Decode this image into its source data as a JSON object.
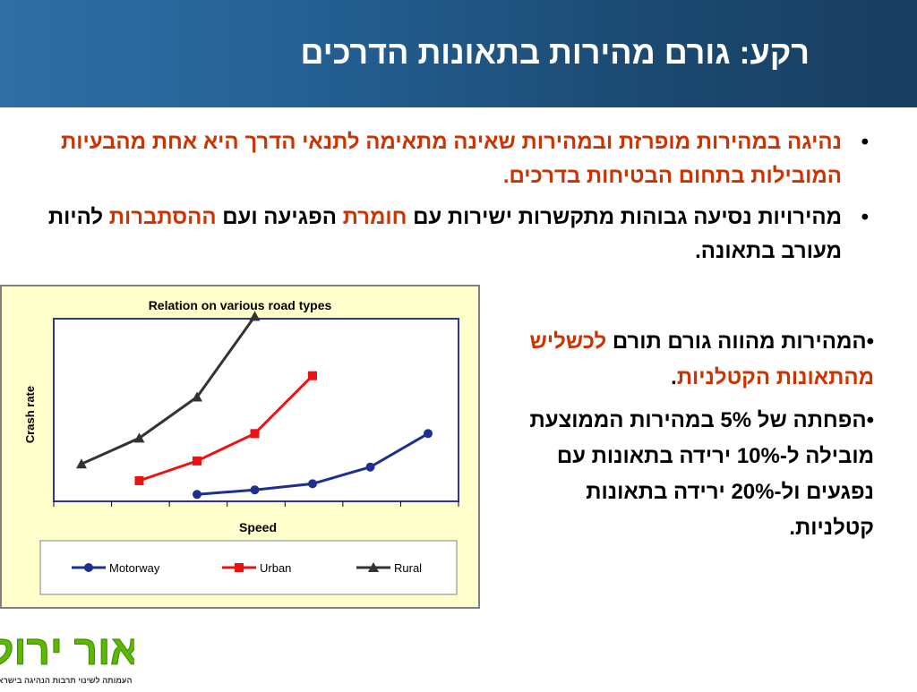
{
  "header": {
    "title": "רקע: גורם מהירות בתאונות הדרכים"
  },
  "bullets": [
    {
      "parts": [
        {
          "text": "נהיגה במהירות מופרזת ובמהירות שאינה מתאימה לתנאי הדרך היא אחת מהבעיות המובילות בתחום הבטיחות בדרכים.",
          "color": "red"
        }
      ]
    },
    {
      "parts": [
        {
          "text": "מהירויות נסיעה גבוהות מתקשרות ישירות עם ",
          "color": "black"
        },
        {
          "text": "חומרת",
          "color": "red"
        },
        {
          "text": " הפגיעה ועם ",
          "color": "black"
        },
        {
          "text": "ההסתברות",
          "color": "red"
        },
        {
          "text": " להיות מעורב בתאונה.",
          "color": "black"
        }
      ]
    }
  ],
  "side": {
    "p1": {
      "a": "•המהירות מהווה גורם תורם ",
      "b": "לכשליש מהתאונות הקטלניות",
      "c": "."
    },
    "p2": "•הפחתה של 5% במהירות הממוצעת מובילה ל-10% ירידה בתאונות עם נפגעים ול-20% ירידה בתאונות קטלניות."
  },
  "logo": {
    "main": "אור ירוק",
    "tagline": "העמותה לשינוי תרבות הנהיגה בישראל"
  },
  "colors": {
    "motorway": "#1f2f8f",
    "urban": "#ee1111",
    "rural": "#333333",
    "chart_bg": "#ffffcc",
    "plot_border": "#2b35a0"
  },
  "chart_data": {
    "type": "line",
    "title": "Relation on various road types",
    "xlabel": "Speed",
    "ylabel": "Crash rate",
    "x": [
      1,
      2,
      3,
      4,
      5,
      6,
      7
    ],
    "ylim": [
      0,
      10
    ],
    "grid": false,
    "legend_position": "bottom",
    "series": [
      {
        "name": "Motorway",
        "marker": "circle",
        "points": [
          [
            3,
            0.1
          ],
          [
            4,
            0.4
          ],
          [
            5,
            0.8
          ],
          [
            6,
            1.9
          ],
          [
            7,
            4.1
          ]
        ]
      },
      {
        "name": "Urban",
        "marker": "square",
        "points": [
          [
            2,
            1.0
          ],
          [
            3,
            2.3
          ],
          [
            4,
            4.1
          ],
          [
            5,
            7.9
          ]
        ]
      },
      {
        "name": "Rural",
        "marker": "triangle",
        "points": [
          [
            1,
            2.1
          ],
          [
            2,
            3.8
          ],
          [
            3,
            6.5
          ],
          [
            4,
            11.8
          ]
        ]
      }
    ]
  }
}
